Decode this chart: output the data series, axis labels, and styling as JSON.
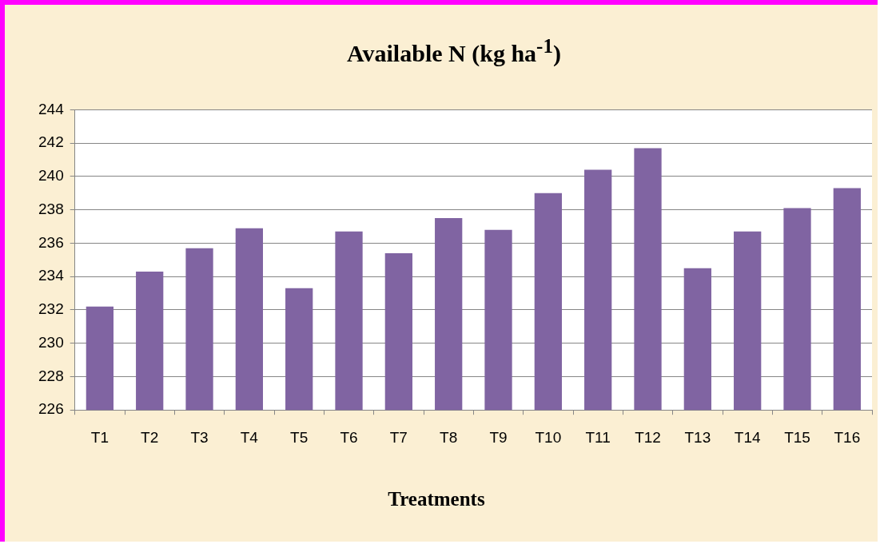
{
  "chart_data": {
    "type": "bar",
    "title": "Available N (kg ha$^{-1}$)",
    "xlabel": "Treatments",
    "categories": [
      "T1",
      "T2",
      "T3",
      "T4",
      "T5",
      "T6",
      "T7",
      "T8",
      "T9",
      "T10",
      "T11",
      "T12",
      "T13",
      "T14",
      "T15",
      "T16"
    ],
    "values": [
      232.2,
      234.3,
      235.7,
      236.9,
      233.3,
      236.7,
      235.4,
      237.5,
      236.8,
      239.0,
      240.4,
      241.7,
      234.5,
      236.7,
      238.1,
      239.3
    ],
    "color": "#8064a2",
    "ylim": [
      226,
      244
    ],
    "yticks": [
      226,
      228,
      230,
      232,
      234,
      236,
      238,
      240,
      242,
      244
    ],
    "grid": "y",
    "legend": false
  }
}
